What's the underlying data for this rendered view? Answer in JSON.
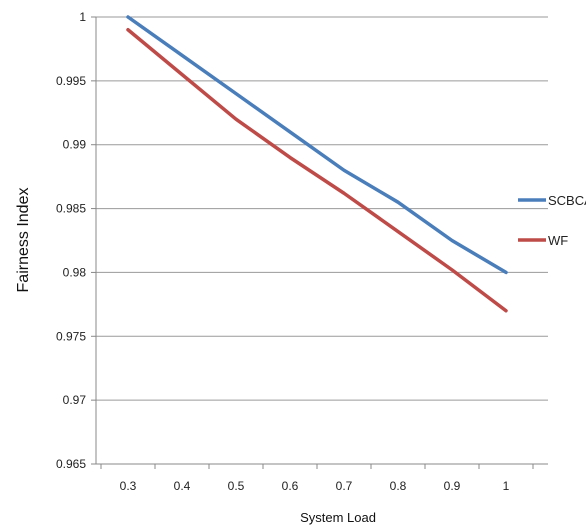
{
  "chart_data": {
    "type": "line",
    "xlabel": "System Load",
    "ylabel": "Fairness Index",
    "x": [
      0.3,
      0.4,
      0.5,
      0.6,
      0.7,
      0.8,
      0.9,
      1.0
    ],
    "x_tick_labels": [
      "0.3",
      "0.4",
      "0.5",
      "0.6",
      "0.7",
      "0.8",
      "0.9",
      "1"
    ],
    "ylim": [
      0.965,
      1.0
    ],
    "y_ticks": [
      0.965,
      0.97,
      0.975,
      0.98,
      0.985,
      0.99,
      0.995,
      1.0
    ],
    "y_tick_labels": [
      "0.965",
      "0.97",
      "0.975",
      "0.98",
      "0.985",
      "0.99",
      "0.995",
      "1"
    ],
    "grid": "horizontal",
    "legend_position": "right",
    "series": [
      {
        "name": "SCBCA",
        "color": "#4A7EBB",
        "values": [
          1.0,
          0.997,
          0.994,
          0.991,
          0.988,
          0.9855,
          0.9825,
          0.98
        ]
      },
      {
        "name": "WF",
        "color": "#BE4B48",
        "values": [
          0.999,
          0.9955,
          0.992,
          0.989,
          0.9862,
          0.9832,
          0.9802,
          0.977
        ]
      }
    ]
  }
}
